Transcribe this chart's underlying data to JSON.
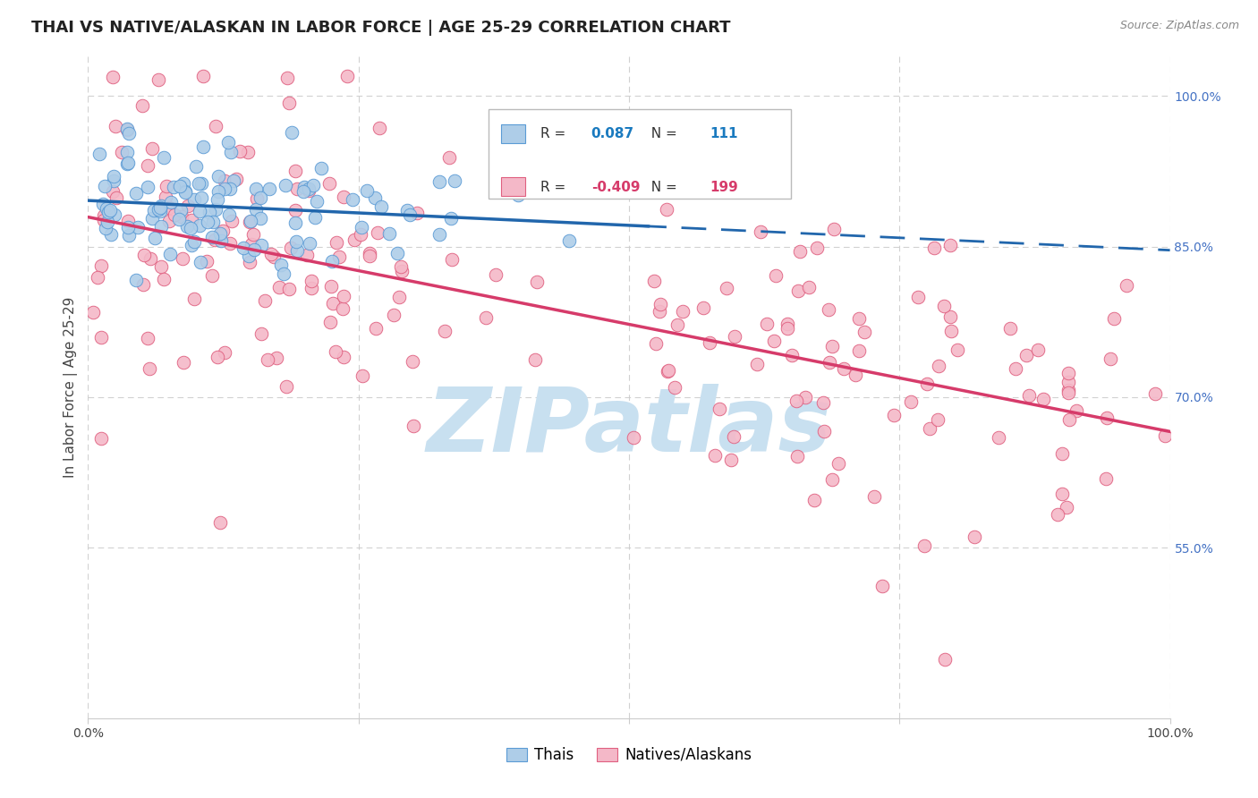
{
  "title": "THAI VS NATIVE/ALASKAN IN LABOR FORCE | AGE 25-29 CORRELATION CHART",
  "source_text": "Source: ZipAtlas.com",
  "ylabel": "In Labor Force | Age 25-29",
  "xlim": [
    0.0,
    1.0
  ],
  "ylim": [
    0.38,
    1.04
  ],
  "ytick_positions": [
    0.55,
    0.7,
    0.85,
    1.0
  ],
  "ytick_labels": [
    "55.0%",
    "70.0%",
    "85.0%",
    "100.0%"
  ],
  "legend_labels": [
    "Thais",
    "Natives/Alaskans"
  ],
  "thai_color": "#aecde8",
  "thai_edge_color": "#5b9bd5",
  "native_color": "#f4b8c8",
  "native_edge_color": "#e06080",
  "regression_thai_color": "#2166ac",
  "regression_native_color": "#d63b6a",
  "thai_R": 0.087,
  "thai_N": 111,
  "native_R": -0.409,
  "native_N": 199,
  "title_fontsize": 13,
  "axis_label_fontsize": 11,
  "tick_fontsize": 10,
  "watermark_text": "ZIPatlas",
  "watermark_color": "#c8e0f0",
  "watermark_fontsize": 72,
  "background_color": "#ffffff",
  "grid_color": "#cccccc",
  "right_ytick_color": "#4472c4",
  "thai_line_solid_end": 0.52,
  "native_line_intercept": 0.882,
  "native_line_slope": -0.215
}
